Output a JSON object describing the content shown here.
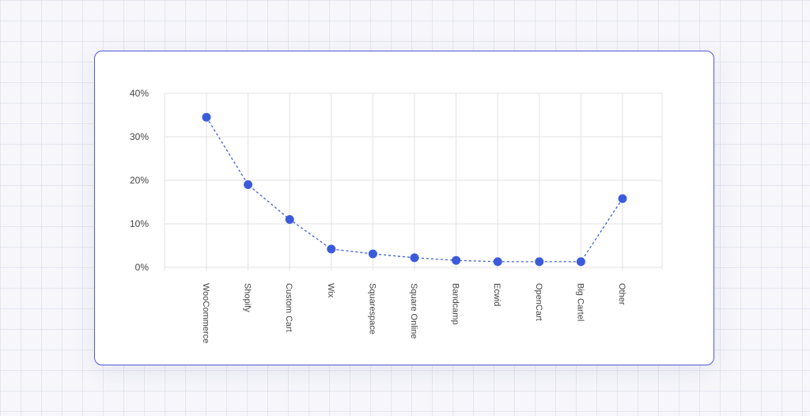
{
  "chart_data": {
    "type": "line",
    "title": "",
    "xlabel": "",
    "ylabel": "",
    "categories": [
      "WooCommerce",
      "Shopify",
      "Custom Cart",
      "Wix",
      "Squarespace",
      "Square Online",
      "Bandcamp",
      "Ecwid",
      "OpenCart",
      "Big Cartel",
      "Other"
    ],
    "values": [
      34.5,
      19,
      11,
      4.2,
      3.1,
      2.2,
      1.6,
      1.3,
      1.3,
      1.3,
      15.8
    ],
    "y_ticks": [
      "0%",
      "10%",
      "20%",
      "30%",
      "40%"
    ],
    "ylim": [
      0,
      40
    ],
    "grid": true,
    "line_style": "dashed",
    "colors": {
      "series": "#3b5bdb",
      "grid": "#e2e2e2",
      "card_border": "#4f5bd5"
    }
  }
}
